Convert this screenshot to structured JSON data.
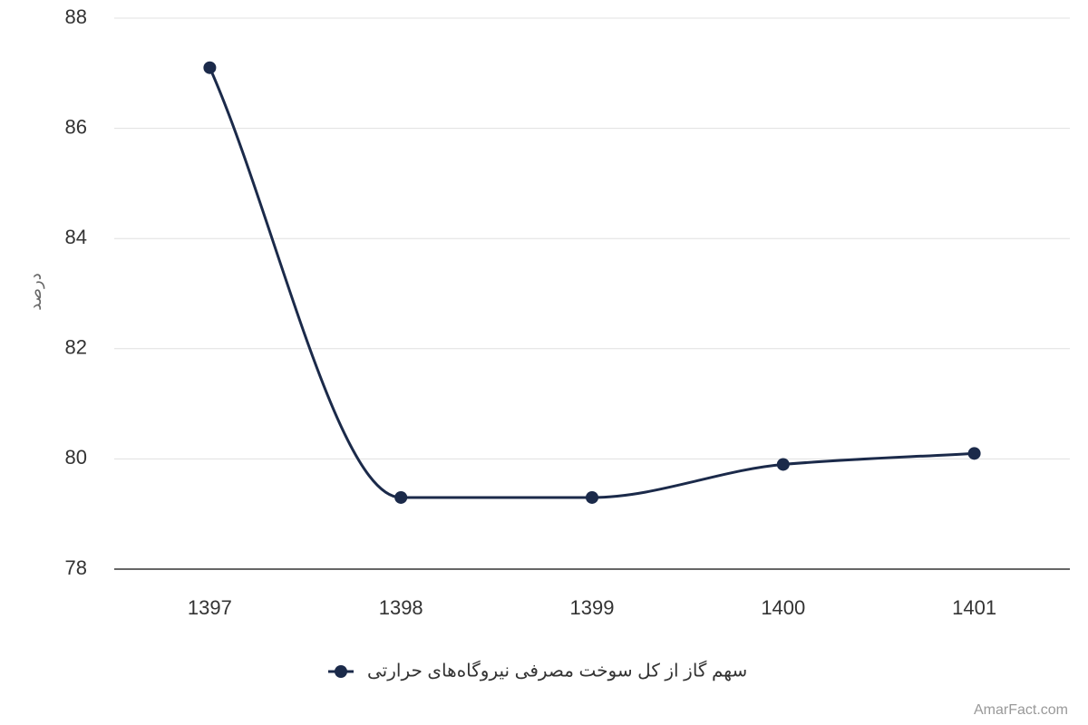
{
  "chart_data": {
    "type": "line",
    "ylabel": "درصد",
    "categories": [
      "1397",
      "1398",
      "1399",
      "1400",
      "1401"
    ],
    "series": [
      {
        "name": "سهم گاز از کل سوخت مصرفی نیروگاه‌های حرارتی",
        "color": "#1b2a4a",
        "values": [
          87.1,
          79.3,
          79.3,
          79.9,
          80.1
        ]
      }
    ],
    "ylim": [
      78,
      88
    ],
    "yticks": [
      78,
      80,
      82,
      84,
      86,
      88
    ],
    "grid": true,
    "legend": "bottom",
    "credit": "AmarFact.com"
  }
}
